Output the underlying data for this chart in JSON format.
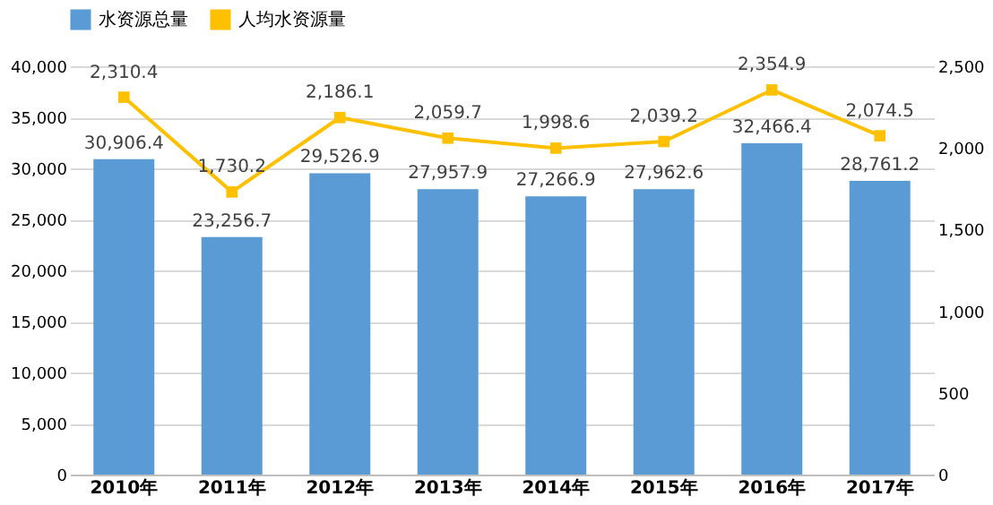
{
  "chart_data": {
    "type": "bar",
    "categories": [
      "2010年",
      "2011年",
      "2012年",
      "2013年",
      "2014年",
      "2015年",
      "2016年",
      "2017年"
    ],
    "series": [
      {
        "name": "水资源总量",
        "color": "#5b9bd5",
        "values": [
          30906.4,
          23256.7,
          29526.9,
          27957.9,
          27266.9,
          27962.6,
          32466.4,
          28761.2
        ],
        "value_labels": [
          "30,906.4",
          "23,256.7",
          "29,526.9",
          "27,957.9",
          "27,266.9",
          "27,962.6",
          "32,466.4",
          "28,761.2"
        ]
      },
      {
        "name": "人均水资源量",
        "type": "line",
        "axis": "y2",
        "color": "#ffc000",
        "marker": "square",
        "values": [
          2310.4,
          1730.2,
          2186.1,
          2059.7,
          1998.6,
          2039.2,
          2354.9,
          2074.5
        ],
        "value_labels": [
          "2,310.4",
          "1,730.2",
          "2,186.1",
          "2,059.7",
          "1,998.6",
          "2,039.2",
          "2,354.9",
          "2,074.5"
        ]
      }
    ],
    "ylim": [
      0,
      40000
    ],
    "yticks": [
      {
        "value": 0,
        "label": "0"
      },
      {
        "value": 5000,
        "label": "5,000"
      },
      {
        "value": 10000,
        "label": "10,000"
      },
      {
        "value": 15000,
        "label": "15,000"
      },
      {
        "value": 20000,
        "label": "20,000"
      },
      {
        "value": 25000,
        "label": "25,000"
      },
      {
        "value": 30000,
        "label": "30,000"
      },
      {
        "value": 35000,
        "label": "35,000"
      },
      {
        "value": 40000,
        "label": "40,000"
      }
    ],
    "y2lim": [
      0,
      2500
    ],
    "y2ticks": [
      {
        "value": 0,
        "label": "0"
      },
      {
        "value": 500,
        "label": "500"
      },
      {
        "value": 1000,
        "label": "1,000"
      },
      {
        "value": 1500,
        "label": "1,500"
      },
      {
        "value": 2000,
        "label": "2,000"
      },
      {
        "value": 2500,
        "label": "2,500"
      }
    ],
    "grid": "y",
    "legend": "top"
  }
}
